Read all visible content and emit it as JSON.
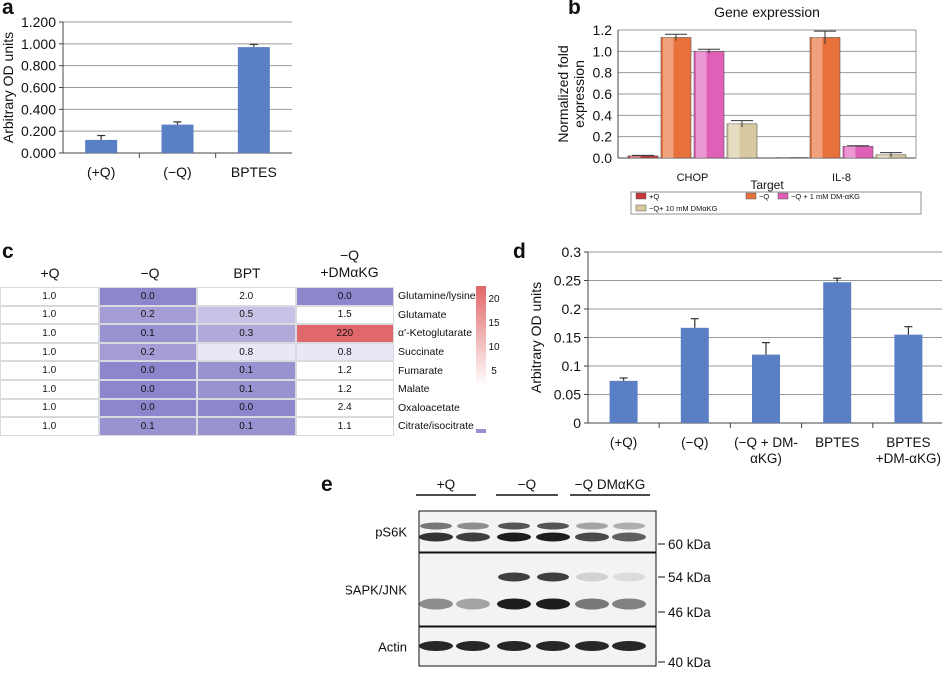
{
  "panel_labels": {
    "a": "a",
    "b": "b",
    "c": "c",
    "d": "d",
    "e": "e"
  },
  "colors": {
    "bar": "#5b7fc4",
    "axis": "#444444",
    "grid": "#9a9a9a",
    "hm_low": "#8e86cc",
    "hm_high": "#e0686a"
  },
  "chart_data": [
    {
      "type": "bar",
      "panel": "a",
      "categories": [
        "(+Q)",
        "(−Q)",
        "BPTES"
      ],
      "values": [
        0.12,
        0.26,
        0.97
      ],
      "errors": [
        0.04,
        0.025,
        0.025
      ],
      "ylabel": "Arbitrary OD units",
      "ylim": [
        0,
        1.2
      ],
      "yticks": [
        "0.000",
        "0.200",
        "0.400",
        "0.600",
        "0.800",
        "1.000",
        "1.200"
      ],
      "grid": true
    },
    {
      "type": "bar",
      "panel": "b",
      "title": "Gene expression",
      "xlabel": "Target",
      "ylabel": "Normalized fold expression",
      "categories": [
        "CHOP",
        "IL-8"
      ],
      "ylim": [
        0,
        1.2
      ],
      "yticks": [
        "0.0",
        "0.2",
        "0.4",
        "0.6",
        "0.8",
        "1.0",
        "1.2"
      ],
      "series": [
        {
          "name": "+Q",
          "values": [
            0.02,
            0.0
          ],
          "errors": [
            0.005,
            0.0
          ],
          "color": "#c8383a"
        },
        {
          "name": "−Q",
          "values": [
            1.13,
            1.13
          ],
          "errors": [
            0.03,
            0.06
          ],
          "color": "#e8703a"
        },
        {
          "name": "−Q + 1 mM DM-αKG",
          "values": [
            1.0,
            0.11
          ],
          "errors": [
            0.02,
            0.005
          ],
          "color": "#e060b8"
        },
        {
          "name": "−Q+ 10 mM DMαKG",
          "values": [
            0.32,
            0.03
          ],
          "errors": [
            0.03,
            0.02
          ],
          "color": "#d8c9a0"
        }
      ],
      "grid": true
    },
    {
      "type": "heatmap",
      "panel": "c",
      "columns": [
        "+Q",
        "−Q",
        "BPT",
        "−Q\n+DMαKG"
      ],
      "rows": [
        "Glutamine/lysine",
        "Glutamate",
        "α'-Ketoglutarate",
        "Succinate",
        "Fumarate",
        "Malate",
        "Oxaloacetate",
        "Citrate/isocitrate"
      ],
      "values": [
        [
          "1.0",
          "0.0",
          "2.0",
          "0.0"
        ],
        [
          "1.0",
          "0.2",
          "0.5",
          "1.5"
        ],
        [
          "1.0",
          "0.1",
          "0.3",
          "220"
        ],
        [
          "1.0",
          "0.2",
          "0.8",
          "0.8"
        ],
        [
          "1.0",
          "0.0",
          "0.1",
          "1.2"
        ],
        [
          "1.0",
          "0.0",
          "0.1",
          "1.2"
        ],
        [
          "1.0",
          "0.0",
          "0.0",
          "2.4"
        ],
        [
          "1.0",
          "0.1",
          "0.1",
          "1.1"
        ]
      ],
      "colorbar_ticks": [
        "20",
        "15",
        "10",
        "5"
      ]
    },
    {
      "type": "bar",
      "panel": "d",
      "categories": [
        "(+Q)",
        "(−Q)",
        "(−Q + DM-\nαKG)",
        "BPTES",
        "BPTES\n+DM-αKG)"
      ],
      "values": [
        0.074,
        0.167,
        0.12,
        0.247,
        0.155
      ],
      "errors": [
        0.005,
        0.016,
        0.021,
        0.007,
        0.014
      ],
      "ylabel": "Arbitrary OD units",
      "ylim": [
        0,
        0.3
      ],
      "yticks": [
        "0",
        "0.05",
        "0.1",
        "0.15",
        "0.2",
        "0.25",
        "0.3"
      ],
      "grid": true
    }
  ],
  "blot": {
    "groups": [
      "+Q",
      "−Q",
      "−Q DMαKG"
    ],
    "rows": [
      "pS6K",
      "pSAPK/JNK",
      "Actin"
    ],
    "markers": [
      "60 kDa",
      "54 kDa",
      "46 kDa",
      "40 kDa"
    ]
  }
}
